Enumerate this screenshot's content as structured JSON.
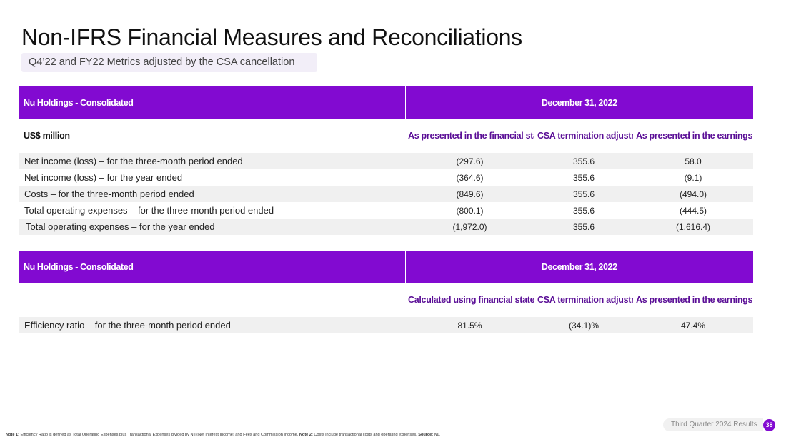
{
  "title": "Non-IFRS Financial Measures and Reconciliations",
  "subtitle": "Q4’22 and FY22 Metrics adjusted by the CSA cancellation",
  "table1": {
    "header_entity": "Nu Holdings - Consolidated",
    "header_date": "December 31, 2022",
    "unit_label": "US$ million",
    "columns": [
      "As presented in the financial statements",
      "CSA termination adjustment",
      "As presented in the earnings presentation"
    ],
    "rows": [
      {
        "label": "Net income (loss) – for the three-month period ended",
        "values": [
          "(297.6)",
          "355.6",
          "58.0"
        ]
      },
      {
        "label": "Net income (loss) – for the year ended",
        "values": [
          "(364.6)",
          "355.6",
          "(9.1)"
        ]
      },
      {
        "label": "Costs – for the three-month period ended",
        "values": [
          "(849.6)",
          "355.6",
          "(494.0)"
        ]
      },
      {
        "label": "Total operating expenses – for the three-month period ended",
        "values": [
          "(800.1)",
          "355.6",
          "(444.5)"
        ]
      },
      {
        "label": "Total operating expenses – for the year ended",
        "values": [
          "(1,972.0)",
          "355.6",
          "(1,616.4)"
        ]
      }
    ]
  },
  "table2": {
    "header_entity": "Nu Holdings - Consolidated",
    "header_date": "December 31, 2022",
    "unit_label": "",
    "columns": [
      "Calculated using financial statements",
      "CSA termination adjustment",
      "As presented in the earnings presentation"
    ],
    "rows": [
      {
        "label": "Efficiency ratio – for the three-month period ended",
        "values": [
          "81.5%",
          "(34.1)%",
          "47.4%"
        ]
      }
    ]
  },
  "footer": {
    "note1_label": "Note 1:",
    "note1_text": "Efficiency Ratio is defined as Total Operating Expenses plus Transactional Expenses divided by NII (Net Interest Income) and Fees and Commission Income.",
    "note2_label": "Note 2:",
    "note2_text": "Costs include transactional costs and operating expenses.",
    "source_label": "Source:",
    "source_text": "Nu."
  },
  "deck_label": "Third Quarter 2024 Results",
  "page_number": "38",
  "colors": {
    "accent": "#820ad1",
    "header_text": "#5a0e96",
    "row_shade": "#f0f0f0",
    "subtitle_bg": "#f2eef8"
  }
}
